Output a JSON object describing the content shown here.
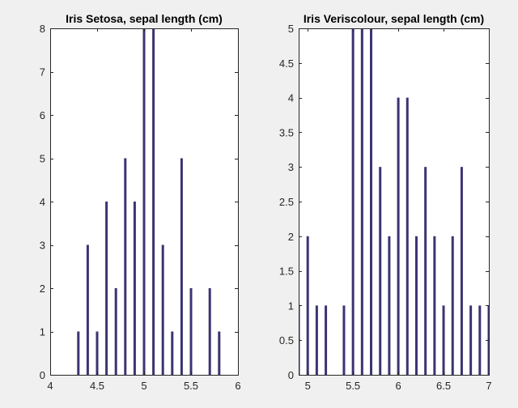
{
  "chart_data": [
    {
      "type": "bar",
      "title": "Iris Setosa, sepal length (cm)",
      "xlabel": "",
      "ylabel": "",
      "xlim": [
        4,
        6
      ],
      "ylim": [
        0,
        8
      ],
      "x_ticks": [
        4,
        4.5,
        5,
        5.5,
        6
      ],
      "x_tick_labels": [
        "4",
        "4.5",
        "5",
        "5.5",
        "6"
      ],
      "y_ticks": [
        0,
        1,
        2,
        3,
        4,
        5,
        6,
        7,
        8
      ],
      "y_tick_labels": [
        "0",
        "1",
        "2",
        "3",
        "4",
        "5",
        "6",
        "7",
        "8"
      ],
      "grid": false,
      "bar_color": "#3b3472",
      "x": [
        4.3,
        4.4,
        4.5,
        4.6,
        4.7,
        4.8,
        4.9,
        5.0,
        5.1,
        5.2,
        5.3,
        5.4,
        5.5,
        5.7,
        5.8
      ],
      "values": [
        1,
        3,
        1,
        4,
        2,
        5,
        4,
        8,
        8,
        3,
        1,
        5,
        2,
        2,
        1
      ]
    },
    {
      "type": "bar",
      "title": "Iris Veriscolour, sepal length (cm)",
      "xlabel": "",
      "ylabel": "",
      "xlim": [
        4.9,
        7
      ],
      "ylim": [
        0,
        5
      ],
      "x_ticks": [
        5,
        5.5,
        6,
        6.5,
        7
      ],
      "x_tick_labels": [
        "5",
        "5.5",
        "6",
        "6.5",
        "7"
      ],
      "y_ticks": [
        0,
        0.5,
        1,
        1.5,
        2,
        2.5,
        3,
        3.5,
        4,
        4.5,
        5
      ],
      "y_tick_labels": [
        "0",
        "0.5",
        "1",
        "1.5",
        "2",
        "2.5",
        "3",
        "3.5",
        "4",
        "4.5",
        "5"
      ],
      "grid": false,
      "bar_color": "#3b3472",
      "x": [
        4.9,
        5.0,
        5.1,
        5.2,
        5.4,
        5.5,
        5.6,
        5.7,
        5.8,
        5.9,
        6.0,
        6.1,
        6.2,
        6.3,
        6.4,
        6.5,
        6.6,
        6.7,
        6.8,
        6.9,
        7.0
      ],
      "values": [
        1,
        2,
        1,
        1,
        1,
        5,
        5,
        5,
        3,
        2,
        4,
        4,
        2,
        3,
        2,
        1,
        2,
        3,
        1,
        1,
        1
      ]
    }
  ]
}
